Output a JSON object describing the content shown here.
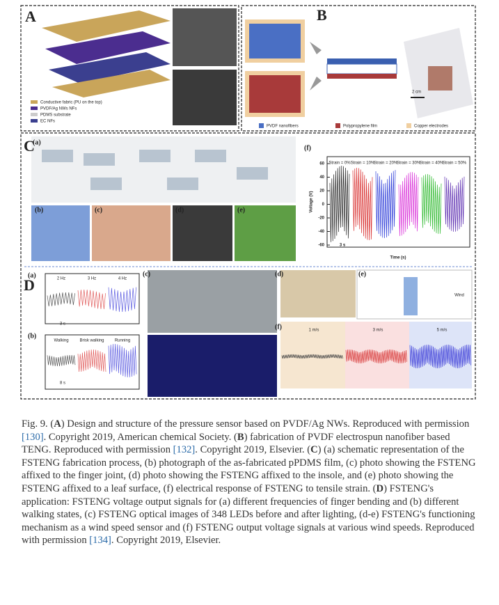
{
  "figure": {
    "A": {
      "label": "A",
      "legend": [
        "Conductive fabric (PU on the top)",
        "PVDF/Ag NWs NFs",
        "PDMS substrate",
        "EC NFs"
      ]
    },
    "B": {
      "label": "B",
      "scale": "2 cm",
      "legend": [
        "PVDF nanofibers",
        "Polypropylene film",
        "Copper electrodes"
      ]
    },
    "C": {
      "label": "C",
      "panels": [
        "(a)",
        "(b)",
        "(c)",
        "(d)",
        "(e)",
        "(f)"
      ],
      "f": {
        "ylabel": "Voltage (V)",
        "xlabel": "Time (s)",
        "scale": "3 s",
        "yticks": [
          60,
          40,
          20,
          0,
          -20,
          -40,
          -60
        ],
        "strains": [
          "Strain = 0%",
          "Strain = 10%",
          "Strain = 20%",
          "Strain = 30%",
          "Strain = 40%",
          "Strain = 50%"
        ]
      }
    },
    "D": {
      "label": "D",
      "panels": [
        "(a)",
        "(b)",
        "(c)",
        "(d)",
        "(e)",
        "(f)"
      ],
      "freqs": [
        "2 Hz",
        "3 Hz",
        "4 Hz"
      ],
      "freq_scale": "3 s",
      "walk": [
        "Walking",
        "Brisk walking",
        "Running"
      ],
      "walk_scale": "8 s",
      "speeds": [
        "1 m/s",
        "3 m/s",
        "5 m/s"
      ],
      "wind": "Wind"
    }
  },
  "caption": [
    {
      "text": "Fig. 9. (",
      "style": "plain"
    },
    {
      "text": "A",
      "style": "bold"
    },
    {
      "text": ") Design and structure of the pressure sensor based on PVDF/Ag NWs. Reproduced with permission ",
      "style": "plain"
    },
    {
      "text": "[130]",
      "style": "link"
    },
    {
      "text": ". Copyright 2019, American chemical Society. (",
      "style": "plain"
    },
    {
      "text": "B",
      "style": "bold"
    },
    {
      "text": ") fabrication of PVDF electrospun nanofiber based TENG. Reproduced with permission ",
      "style": "plain"
    },
    {
      "text": "[132]",
      "style": "link"
    },
    {
      "text": ". Copyright 2019, Elsevier. (",
      "style": "plain"
    },
    {
      "text": "C",
      "style": "bold"
    },
    {
      "text": ") (a) schematic representation of the FSTENG fabrication process, (b) photograph of the as-fabricated pPDMS film, (c) photo showing the FSTENG affixed to the finger joint, (d) photo showing the FSTENG affixed to the insole, and (e) photo showing the FSTENG affixed to a leaf surface, (f) electrical response of FSTENG to tensile strain. (",
      "style": "plain"
    },
    {
      "text": "D",
      "style": "bold"
    },
    {
      "text": ") FSTENG's application: FSTENG voltage output signals for (a) different frequencies of finger bending and (b) different walking states, (c) FSTENG optical images of 348 LEDs before and after lighting, (d-e) FSTENG's functioning mechanism as a wind speed sensor and (f) FSTENG output voltage signals at various wind speeds. Reproduced with permission ",
      "style": "plain"
    },
    {
      "text": "[134]",
      "style": "link"
    },
    {
      "text": ". Copyright 2019, Elsevier.",
      "style": "plain"
    }
  ]
}
